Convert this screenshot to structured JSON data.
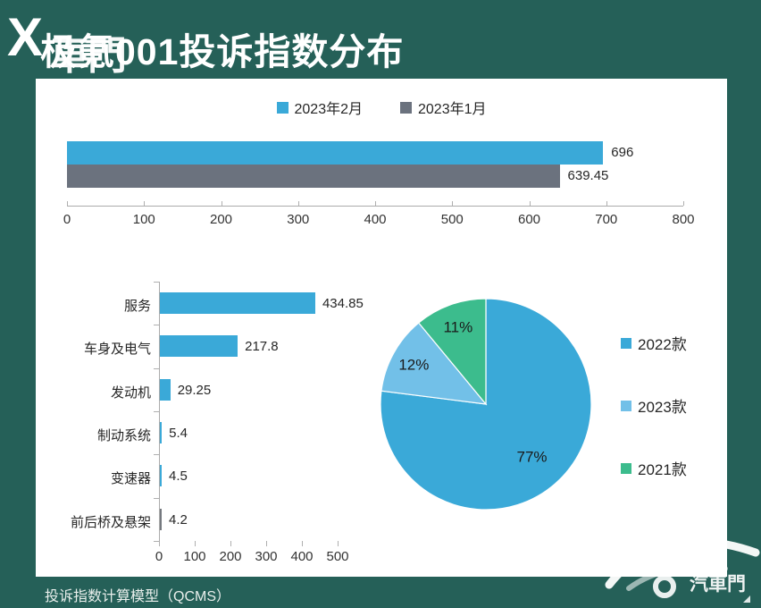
{
  "header": {
    "title": "极氪001投诉指数分布",
    "watermark_x": "X",
    "watermark_text": "車門"
  },
  "footer": {
    "text": "投诉指数计算模型（QCMS）",
    "logo_text": "汽車門"
  },
  "colors": {
    "background_green": "#256058",
    "bar_blue": "#3AA9D8",
    "bar_gray": "#6B727E",
    "pie_light_blue": "#72C0E8",
    "pie_green": "#3CBC8D",
    "small_bar_gray": "#75797F",
    "axis_gray": "#ababab",
    "text_dark": "#262626"
  },
  "chart_data": [
    {
      "type": "bar",
      "orientation": "horizontal",
      "title": "",
      "series": [
        {
          "name": "2023年2月",
          "value": 696,
          "value_label": "696",
          "color": "#3AA9D8"
        },
        {
          "name": "2023年1月",
          "value": 639.45,
          "value_label": "639.45",
          "color": "#6B727E"
        }
      ],
      "xlim": [
        0,
        800
      ],
      "xticks": [
        0,
        100,
        200,
        300,
        400,
        500,
        600,
        700,
        800
      ],
      "legend_position": "top",
      "grid": false
    },
    {
      "type": "bar",
      "orientation": "horizontal",
      "title": "",
      "categories": [
        "服务",
        "车身及电气",
        "发动机",
        "制动系统",
        "变速器",
        "前后桥及悬架"
      ],
      "values": [
        434.85,
        217.8,
        29.25,
        5.4,
        4.5,
        4.2
      ],
      "value_labels": [
        "434.85",
        "217.8",
        "29.25",
        "5.4",
        "4.5",
        "4.2"
      ],
      "bar_colors": [
        "#3AA9D8",
        "#3AA9D8",
        "#3AA9D8",
        "#3AA9D8",
        "#3AA9D8",
        "#75797F"
      ],
      "xlim": [
        0,
        500
      ],
      "xticks": [
        0,
        100,
        200,
        300,
        400,
        500
      ],
      "grid": false
    },
    {
      "type": "pie",
      "title": "",
      "slices": [
        {
          "label": "2022款",
          "pct": 77,
          "pct_label": "77%",
          "color": "#3AA9D8"
        },
        {
          "label": "2023款",
          "pct": 12,
          "pct_label": "12%",
          "color": "#72C0E8"
        },
        {
          "label": "2021款",
          "pct": 11,
          "pct_label": "11%",
          "color": "#3CBC8D"
        }
      ],
      "start_angle": "12-oclock-clockwise",
      "legend_position": "right"
    }
  ]
}
